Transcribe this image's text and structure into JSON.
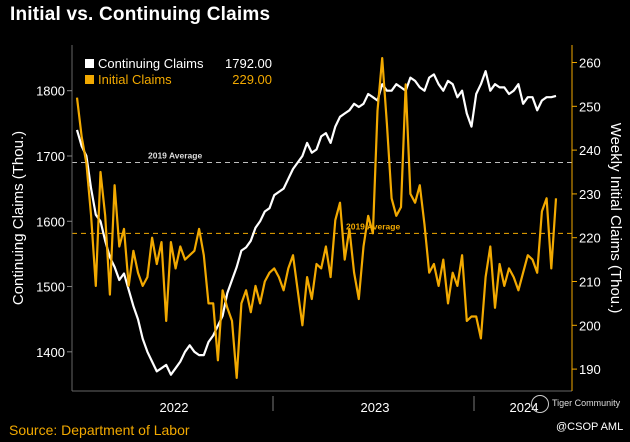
{
  "title": "Initial vs. Continuing Claims",
  "source": "Source: Department of Labor",
  "watermark": {
    "brand": "Tiger Community",
    "handle": "@CSOP AML"
  },
  "colors": {
    "background": "#000000",
    "continuing": "#ffffff",
    "initial": "#f2a900",
    "avg_continuing": "#bfbfbf",
    "avg_initial": "#f2a900"
  },
  "chart_data": {
    "type": "line",
    "title": "Initial vs. Continuing Claims",
    "x_labels": [
      "2022",
      "2023",
      "2024"
    ],
    "left_axis": {
      "label": "Continuing Claims (Thou.)",
      "ticks": [
        1400,
        1500,
        1600,
        1700,
        1800
      ],
      "range": [
        1340,
        1870
      ]
    },
    "right_axis": {
      "label": "Weekly Initial Claims (Thou.)",
      "ticks": [
        190,
        200,
        210,
        220,
        230,
        240,
        250,
        260
      ],
      "range": [
        185,
        264
      ]
    },
    "legend": [
      {
        "name": "Continuing Claims",
        "value": "1792.00"
      },
      {
        "name": "Initial Claims",
        "value": "229.00"
      }
    ],
    "reference_lines": [
      {
        "label": "2019 Average",
        "axis": "left",
        "value": 1690
      },
      {
        "label": "2019 Average",
        "axis": "right",
        "value": 221
      }
    ],
    "series": [
      {
        "name": "Continuing Claims",
        "axis": "left",
        "values": [
          1740,
          1715,
          1700,
          1650,
          1610,
          1600,
          1570,
          1545,
          1530,
          1510,
          1520,
          1495,
          1470,
          1450,
          1420,
          1400,
          1385,
          1370,
          1375,
          1380,
          1365,
          1375,
          1385,
          1400,
          1410,
          1400,
          1395,
          1395,
          1415,
          1425,
          1440,
          1455,
          1490,
          1510,
          1530,
          1555,
          1560,
          1570,
          1590,
          1600,
          1615,
          1620,
          1640,
          1645,
          1650,
          1665,
          1680,
          1690,
          1700,
          1720,
          1705,
          1710,
          1730,
          1735,
          1720,
          1745,
          1760,
          1765,
          1770,
          1780,
          1775,
          1780,
          1795,
          1790,
          1785,
          1810,
          1800,
          1800,
          1810,
          1805,
          1800,
          1820,
          1815,
          1805,
          1800,
          1820,
          1825,
          1810,
          1800,
          1815,
          1810,
          1790,
          1800,
          1765,
          1745,
          1795,
          1810,
          1830,
          1800,
          1810,
          1805,
          1805,
          1795,
          1800,
          1810,
          1780,
          1790,
          1790,
          1770,
          1785,
          1790,
          1790,
          1792
        ]
      },
      {
        "name": "Initial Claims",
        "axis": "right",
        "values": [
          252,
          243,
          237,
          225,
          209,
          235,
          225,
          207,
          232,
          218,
          222,
          209,
          217,
          212,
          209,
          211,
          220,
          214,
          219,
          201,
          219,
          213,
          218,
          215,
          216,
          217,
          222,
          216,
          205,
          205,
          192,
          208,
          204,
          201,
          188,
          205,
          208,
          203,
          209,
          205,
          210,
          212,
          213,
          211,
          208,
          213,
          216,
          208,
          200,
          211,
          206,
          214,
          213,
          218,
          211,
          224,
          228,
          215,
          222,
          212,
          206,
          218,
          225,
          221,
          249,
          261,
          246,
          229,
          225,
          227,
          255,
          230,
          228,
          232,
          223,
          212,
          214,
          209,
          215,
          205,
          212,
          209,
          216,
          201,
          202,
          202,
          197,
          211,
          218,
          204,
          214,
          209,
          213,
          211,
          208,
          212,
          216,
          215,
          212,
          226,
          229,
          213,
          229
        ]
      }
    ],
    "grid": false,
    "legend_position": "top-left"
  }
}
